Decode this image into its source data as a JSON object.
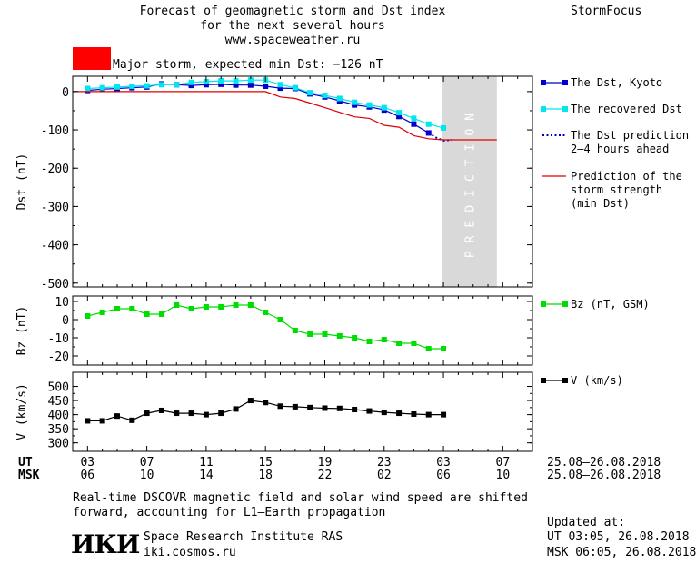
{
  "header": {
    "title_line1": "Forecast of geomagnetic storm and Dst index",
    "title_line2": "for the next several hours",
    "site": "www.spaceweather.ru",
    "brand": "StormFocus",
    "storm_status": "Major storm, expected min Dst: −126 nT",
    "storm_color": "#ff0000"
  },
  "legend": {
    "dst_kyoto": "The Dst, Kyoto",
    "dst_recovered": "The recovered Dst",
    "dst_prediction_l1": "The Dst prediction",
    "dst_prediction_l2": "2–4 hours ahead",
    "storm_pred_l1": "Prediction of the",
    "storm_pred_l2": "storm strength",
    "storm_pred_l3": "(min Dst)",
    "bz": "Bz (nT, GSM)",
    "v": "V (km/s)"
  },
  "chart_data": [
    {
      "type": "line",
      "ylabel": "Dst (nT)",
      "ylim": [
        -510,
        40
      ],
      "yticks": [
        0,
        -100,
        -200,
        -300,
        -400,
        -500
      ],
      "xlim": [
        3,
        34
      ],
      "shade_label": "PREDICTION",
      "shade_range": [
        27.9,
        31.6
      ],
      "series": [
        {
          "name": "The Dst, Kyoto",
          "color": "#0000cc",
          "marker": "square",
          "x": [
            4,
            5,
            6,
            7,
            8,
            9,
            10,
            11,
            12,
            13,
            14,
            15,
            16,
            17,
            18,
            19,
            20,
            21,
            22,
            23,
            24,
            25,
            26,
            27
          ],
          "y": [
            3,
            6,
            8,
            10,
            12,
            20,
            18,
            16,
            18,
            19,
            17,
            17,
            14,
            9,
            8,
            -6,
            -14,
            -24,
            -35,
            -40,
            -48,
            -65,
            -85,
            -108
          ]
        },
        {
          "name": "The recovered Dst",
          "color": "#00e5ee",
          "marker": "square",
          "x": [
            4,
            5,
            6,
            7,
            8,
            9,
            10,
            11,
            12,
            13,
            14,
            15,
            16,
            17,
            18,
            19,
            20,
            21,
            22,
            23,
            24,
            25,
            26,
            27,
            28
          ],
          "y": [
            8,
            10,
            12,
            14,
            15,
            18,
            18,
            24,
            26,
            28,
            28,
            30,
            30,
            18,
            10,
            -3,
            -10,
            -18,
            -28,
            -35,
            -42,
            -55,
            -70,
            -85,
            -95
          ]
        },
        {
          "name": "The Dst prediction",
          "color": "#0000cc",
          "dotted": true,
          "x": [
            27,
            27.5,
            28,
            28.6
          ],
          "y": [
            -108,
            -120,
            -128,
            -126
          ]
        },
        {
          "name": "Prediction of the storm strength",
          "color": "#dd0000",
          "x": [
            3,
            16,
            17,
            18,
            19,
            20,
            21,
            22,
            23,
            24,
            25,
            26,
            27,
            28,
            31.6
          ],
          "y": [
            0,
            0,
            -14,
            -18,
            -30,
            -42,
            -54,
            -66,
            -70,
            -88,
            -93,
            -115,
            -123,
            -126,
            -126
          ]
        }
      ]
    },
    {
      "type": "line",
      "ylabel": "Bz (nT)",
      "ylim": [
        -25,
        13
      ],
      "yticks": [
        10,
        0,
        -10,
        -20
      ],
      "xlim": [
        3,
        34
      ],
      "series": [
        {
          "name": "Bz (nT, GSM)",
          "color": "#00dd00",
          "marker": "square",
          "x": [
            4,
            5,
            6,
            7,
            8,
            9,
            10,
            11,
            12,
            13,
            14,
            15,
            16,
            17,
            18,
            19,
            20,
            21,
            22,
            23,
            24,
            25,
            26,
            27,
            28
          ],
          "y": [
            2,
            4,
            6,
            6,
            3,
            3,
            8,
            6,
            7,
            7,
            8,
            8,
            4,
            0,
            -6,
            -8,
            -8,
            -9,
            -10,
            -12,
            -11,
            -13,
            -13,
            -16,
            -16
          ]
        }
      ]
    },
    {
      "type": "line",
      "ylabel": "V (km/s)",
      "ylim": [
        270,
        550
      ],
      "yticks": [
        500,
        450,
        400,
        350,
        300
      ],
      "xlim": [
        3,
        34
      ],
      "series": [
        {
          "name": "V (km/s)",
          "color": "#000000",
          "marker": "square",
          "x": [
            4,
            5,
            6,
            7,
            8,
            9,
            10,
            11,
            12,
            13,
            14,
            15,
            16,
            17,
            18,
            19,
            20,
            21,
            22,
            23,
            24,
            25,
            26,
            27,
            28
          ],
          "y": [
            378,
            378,
            395,
            380,
            405,
            415,
            405,
            405,
            400,
            405,
            420,
            450,
            443,
            430,
            428,
            425,
            423,
            422,
            418,
            413,
            408,
            405,
            402,
            400,
            400
          ]
        }
      ]
    }
  ],
  "xaxis": {
    "ut_label": "UT",
    "msk_label": "MSK",
    "ut_ticks": [
      "03",
      "07",
      "11",
      "15",
      "19",
      "23",
      "03",
      "07"
    ],
    "msk_ticks": [
      "06",
      "10",
      "14",
      "18",
      "22",
      "02",
      "06",
      "10"
    ],
    "tick_positions": [
      4,
      8,
      12,
      16,
      20,
      24,
      28,
      32
    ],
    "ut_date_range": "25.08–26.08.2018",
    "msk_date_range": "25.08–26.08.2018"
  },
  "footer": {
    "note_line1": "Real-time DSCOVR magnetic field and solar wind speed are shifted",
    "note_line2": "forward, accounting for L1–Earth propagation",
    "logo_text": "ИКИ",
    "institute": "Space Research Institute RAS",
    "institute_site": "iki.cosmos.ru",
    "updated_label": "Updated at:",
    "updated_ut": "UT   03:05, 26.08.2018",
    "updated_msk": "MSK 06:05, 26.08.2018"
  }
}
